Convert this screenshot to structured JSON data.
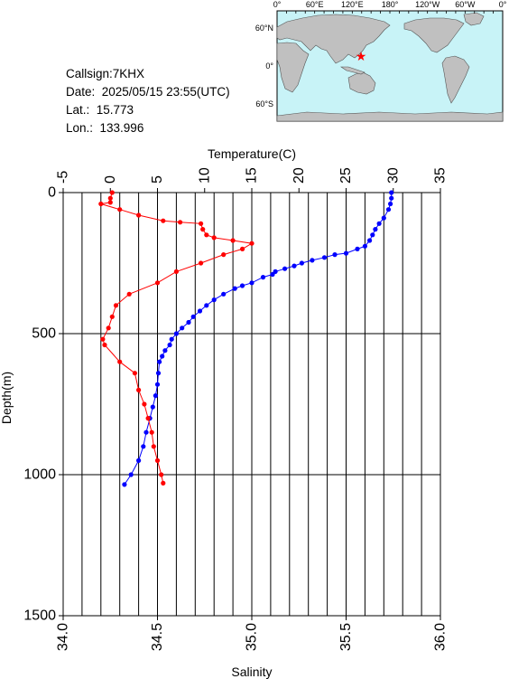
{
  "info": {
    "callsign": "Callsign:7KHX",
    "date": "Date:  2025/05/15 23:55(UTC)",
    "lat": "Lat.:  15.773",
    "lon": "Lon.:  133.996"
  },
  "map": {
    "top_labels": [
      "0°",
      "60°E",
      "120°E",
      "180°",
      "120°W",
      "60°W",
      "0°"
    ],
    "lat_labels": [
      "60°N",
      "0°",
      "60°S"
    ],
    "marker": {
      "lat": 15.773,
      "lon": 133.996
    },
    "colors": {
      "ocean": "#c8f3f7",
      "land": "#c0c0c0",
      "marker": "#ff0000"
    }
  },
  "chart_data": {
    "type": "line",
    "xlabel_top": "Temperature(C)",
    "xlabel_bottom": "Salinity",
    "ylabel": "Depth(m)",
    "temperature_ticks": [
      "-5",
      "0",
      "5",
      "10",
      "15",
      "20",
      "25",
      "30",
      "35"
    ],
    "temperature_range": [
      -5,
      35
    ],
    "salinity_ticks": [
      "34.0",
      "34.5",
      "35.0",
      "35.5",
      "36.0"
    ],
    "salinity_range": [
      34.0,
      36.0
    ],
    "depth_ticks": [
      "0",
      "500",
      "1000",
      "1500"
    ],
    "depth_range": [
      0,
      1500
    ],
    "grid": true,
    "series": [
      {
        "quantity": "temperature",
        "color": "#0000ff",
        "x": [
          29.8,
          29.8,
          29.7,
          29.5,
          29.0,
          28.5,
          28.1,
          27.8,
          27.5,
          27.0,
          26.2,
          25.0,
          23.8,
          22.7,
          21.4,
          20.3,
          19.5,
          18.5,
          17.5,
          17.2,
          16.2,
          15.0,
          14.0,
          13.2,
          12.0,
          11.0,
          10.2,
          9.5,
          8.8,
          8.3,
          7.6,
          7.0,
          6.5,
          6.3,
          5.8,
          5.5,
          5.2,
          5.1,
          5.0,
          4.8,
          4.5,
          4.2,
          3.8,
          3.5,
          3.0,
          2.2,
          1.5
        ],
        "y": [
          0,
          20,
          40,
          60,
          90,
          110,
          130,
          150,
          170,
          190,
          200,
          215,
          220,
          230,
          240,
          250,
          260,
          270,
          280,
          290,
          300,
          320,
          330,
          340,
          360,
          380,
          400,
          420,
          440,
          460,
          480,
          500,
          520,
          540,
          560,
          580,
          600,
          640,
          680,
          720,
          760,
          800,
          850,
          900,
          950,
          1000,
          1035
        ]
      },
      {
        "quantity": "salinity",
        "color": "#ff0000",
        "x": [
          34.26,
          34.25,
          34.25,
          34.2,
          34.3,
          34.4,
          34.53,
          34.62,
          34.73,
          34.74,
          34.76,
          34.8,
          34.9,
          35.0,
          34.95,
          34.85,
          34.73,
          34.6,
          34.5,
          34.35,
          34.28,
          34.26,
          34.24,
          34.21,
          34.22,
          34.3,
          34.38,
          34.4,
          34.43,
          34.45,
          34.47,
          34.48,
          34.5,
          34.52,
          34.53
        ],
        "y": [
          0,
          20,
          35,
          40,
          60,
          80,
          100,
          105,
          110,
          130,
          150,
          160,
          170,
          180,
          200,
          220,
          250,
          280,
          320,
          360,
          400,
          440,
          480,
          520,
          540,
          600,
          640,
          700,
          750,
          800,
          850,
          900,
          950,
          1000,
          1030
        ]
      }
    ]
  }
}
